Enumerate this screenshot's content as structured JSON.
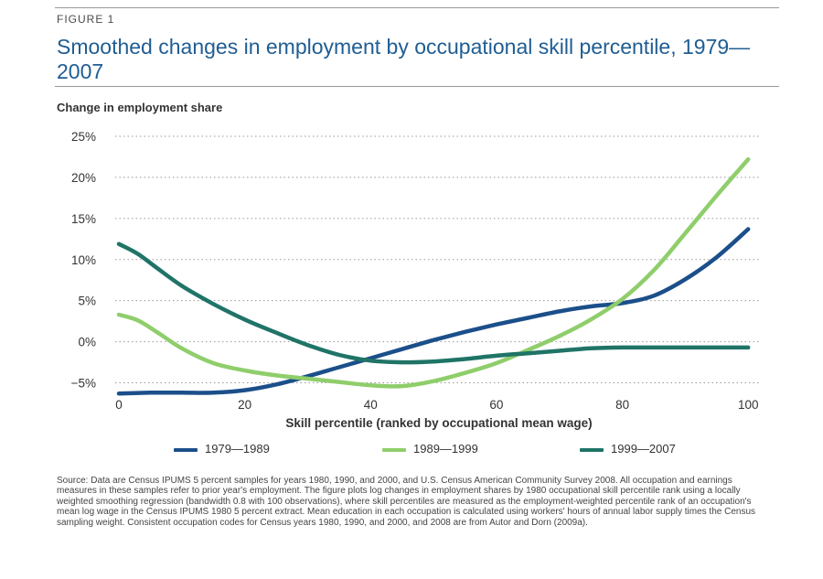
{
  "figure_label": "FIGURE 1",
  "chart_data": {
    "type": "line",
    "title": "Smoothed changes in employment by occupational skill percentile, 1979—2007",
    "ylabel": "Change in employment share",
    "xlabel": "Skill percentile (ranked by occupational mean wage)",
    "xlim": [
      0,
      102
    ],
    "ylim": [
      -6.5,
      26
    ],
    "x_ticks": [
      0,
      20,
      40,
      60,
      80,
      100
    ],
    "y_ticks": [
      -5,
      0,
      5,
      10,
      15,
      20,
      25
    ],
    "y_tick_labels": [
      "−5%",
      "0%",
      "5%",
      "10%",
      "15%",
      "20%",
      "25%"
    ],
    "grid": "horizontal dotted",
    "legend_position": "bottom",
    "series": [
      {
        "name": "1979—1989",
        "color": "#1b4f8a",
        "x": [
          0,
          5,
          10,
          15,
          20,
          25,
          30,
          35,
          40,
          45,
          50,
          55,
          60,
          65,
          70,
          75,
          80,
          85,
          90,
          95,
          100
        ],
        "y": [
          -6.3,
          -6.2,
          -6.2,
          -6.2,
          -5.9,
          -5.2,
          -4.2,
          -3.1,
          -2.0,
          -0.9,
          0.2,
          1.2,
          2.1,
          2.9,
          3.7,
          4.3,
          4.7,
          5.6,
          7.6,
          10.3,
          13.7
        ]
      },
      {
        "name": "1989—1999",
        "color": "#8fce6b",
        "x": [
          0,
          3,
          6,
          10,
          15,
          20,
          25,
          30,
          35,
          40,
          45,
          50,
          55,
          60,
          65,
          70,
          75,
          80,
          85,
          90,
          95,
          100
        ],
        "y": [
          3.3,
          2.6,
          1.2,
          -0.8,
          -2.6,
          -3.5,
          -4.1,
          -4.5,
          -4.9,
          -5.3,
          -5.4,
          -4.8,
          -3.8,
          -2.6,
          -1.0,
          0.7,
          2.7,
          5.2,
          8.7,
          13.2,
          17.8,
          22.2
        ]
      },
      {
        "name": "1999—2007",
        "color": "#1f7467",
        "x": [
          0,
          3,
          6,
          10,
          15,
          20,
          25,
          30,
          35,
          40,
          45,
          50,
          55,
          60,
          65,
          70,
          75,
          80,
          85,
          90,
          95,
          100
        ],
        "y": [
          11.9,
          10.7,
          9.0,
          6.8,
          4.6,
          2.7,
          1.1,
          -0.4,
          -1.6,
          -2.3,
          -2.5,
          -2.4,
          -2.1,
          -1.7,
          -1.4,
          -1.1,
          -0.8,
          -0.7,
          -0.7,
          -0.7,
          -0.7,
          -0.7
        ]
      }
    ]
  },
  "source_text": "Source: Data are Census IPUMS 5 percent samples for years 1980, 1990, and 2000, and U.S. Census American Community Survey 2008. All occupation and earnings measures in these samples refer to prior year's employment. The figure plots log changes in employment shares by 1980 occupational skill percentile rank using a locally weighted smoothing regression (bandwidth 0.8 with 100 observations), where skill percentiles are measured as the employment-weighted percentile rank of an occupation's mean log wage in the Census IPUMS 1980 5 percent extract. Mean education in each occupation is calculated using workers' hours of annual labor supply times the Census sampling weight. Consistent occupation codes for Census years 1980, 1990, and 2000, and 2008 are from Autor and Dorn (2009a)."
}
